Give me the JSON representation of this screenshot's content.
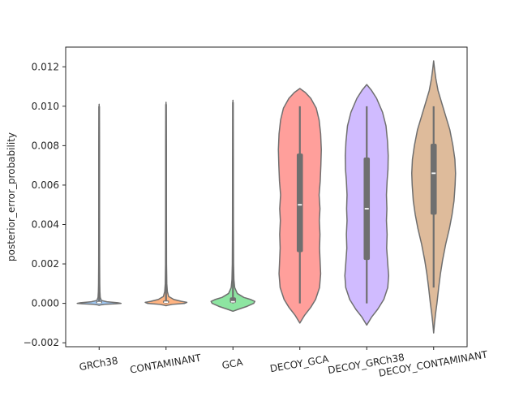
{
  "chart_data": {
    "type": "violin",
    "title": "",
    "xlabel": "",
    "ylabel": "posterior_error_probability",
    "ylim": [
      -0.0022,
      0.013
    ],
    "yticks": [
      -0.002,
      0.0,
      0.002,
      0.004,
      0.006,
      0.008,
      0.01,
      0.012
    ],
    "ytick_labels": [
      "−0.002",
      "0.000",
      "0.002",
      "0.004",
      "0.006",
      "0.008",
      "0.010",
      "0.012"
    ],
    "grid": false,
    "categories": [
      "GRCh38",
      "CONTAMINANT",
      "GCA",
      "DECOY_GCA",
      "DECOY_GRCh38",
      "DECOY_CONTAMINANT"
    ],
    "violins": [
      {
        "category": "GRCh38",
        "color": "#a1c9f4",
        "whisker_low": 0.0,
        "q1": 1e-05,
        "median": 4e-05,
        "q3": 0.0001,
        "whisker_high": 0.01,
        "density": [
          [
            -0.0001,
            0.0
          ],
          [
            -8e-05,
            0.06
          ],
          [
            -5e-05,
            0.25
          ],
          [
            -2e-05,
            0.75
          ],
          [
            0.0,
            1.0
          ],
          [
            3e-05,
            0.85
          ],
          [
            8e-05,
            0.35
          ],
          [
            0.00015,
            0.1
          ],
          [
            0.0003,
            0.05
          ],
          [
            0.0006,
            0.035
          ],
          [
            0.001,
            0.027
          ],
          [
            0.002,
            0.02
          ],
          [
            0.005,
            0.016
          ],
          [
            0.008,
            0.015
          ],
          [
            0.0101,
            0.0
          ]
        ]
      },
      {
        "category": "CONTAMINANT",
        "color": "#ffb482",
        "whisker_low": 0.0,
        "q1": 1e-05,
        "median": 6e-05,
        "q3": 0.00015,
        "whisker_high": 0.0101,
        "density": [
          [
            -0.00012,
            0.0
          ],
          [
            -0.0001,
            0.06
          ],
          [
            -5e-05,
            0.3
          ],
          [
            0.0,
            0.85
          ],
          [
            5e-05,
            0.95
          ],
          [
            0.0001,
            0.7
          ],
          [
            0.0002,
            0.35
          ],
          [
            0.00035,
            0.12
          ],
          [
            0.0006,
            0.06
          ],
          [
            0.001,
            0.035
          ],
          [
            0.002,
            0.022
          ],
          [
            0.005,
            0.017
          ],
          [
            0.008,
            0.015
          ],
          [
            0.0102,
            0.0
          ]
        ]
      },
      {
        "category": "GCA",
        "color": "#8de5a1",
        "whisker_low": 0.0,
        "q1": 2e-05,
        "median": 8e-05,
        "q3": 0.0003,
        "whisker_high": 0.0102,
        "density": [
          [
            -0.0004,
            0.0
          ],
          [
            -0.0003,
            0.25
          ],
          [
            -0.00015,
            0.65
          ],
          [
            0.0,
            0.95
          ],
          [
            0.0001,
            1.0
          ],
          [
            0.0002,
            0.8
          ],
          [
            0.0003,
            0.5
          ],
          [
            0.0005,
            0.2
          ],
          [
            0.0008,
            0.08
          ],
          [
            0.0012,
            0.045
          ],
          [
            0.002,
            0.028
          ],
          [
            0.004,
            0.02
          ],
          [
            0.007,
            0.017
          ],
          [
            0.0103,
            0.0
          ]
        ]
      },
      {
        "category": "DECOY_GCA",
        "color": "#ff9f9b",
        "whisker_low": 0.0,
        "q1": 0.0026,
        "median": 0.005,
        "q3": 0.0076,
        "whisker_high": 0.01,
        "density": [
          [
            -0.001,
            0.0
          ],
          [
            -0.0006,
            0.22
          ],
          [
            -0.0002,
            0.5
          ],
          [
            0.0002,
            0.72
          ],
          [
            0.0008,
            0.9
          ],
          [
            0.0015,
            0.95
          ],
          [
            0.002,
            0.93
          ],
          [
            0.0028,
            0.9
          ],
          [
            0.0035,
            0.92
          ],
          [
            0.0042,
            0.89
          ],
          [
            0.0048,
            0.92
          ],
          [
            0.0055,
            0.88
          ],
          [
            0.0062,
            0.93
          ],
          [
            0.007,
            0.96
          ],
          [
            0.0078,
            0.98
          ],
          [
            0.0086,
            0.95
          ],
          [
            0.0093,
            0.88
          ],
          [
            0.0099,
            0.75
          ],
          [
            0.0104,
            0.5
          ],
          [
            0.0107,
            0.25
          ],
          [
            0.0109,
            0.0
          ]
        ]
      },
      {
        "category": "DECOY_GRCh38",
        "color": "#d0bbff",
        "whisker_low": 0.0,
        "q1": 0.0022,
        "median": 0.0048,
        "q3": 0.0074,
        "whisker_high": 0.01,
        "density": [
          [
            -0.0011,
            0.0
          ],
          [
            -0.0007,
            0.22
          ],
          [
            -0.0003,
            0.5
          ],
          [
            0.0002,
            0.78
          ],
          [
            0.0008,
            0.96
          ],
          [
            0.0014,
            1.0
          ],
          [
            0.002,
            0.96
          ],
          [
            0.0028,
            0.91
          ],
          [
            0.0035,
            0.93
          ],
          [
            0.0042,
            0.9
          ],
          [
            0.0048,
            0.92
          ],
          [
            0.0055,
            0.9
          ],
          [
            0.0062,
            0.93
          ],
          [
            0.0068,
            0.97
          ],
          [
            0.0075,
            0.98
          ],
          [
            0.0082,
            0.95
          ],
          [
            0.009,
            0.88
          ],
          [
            0.0097,
            0.72
          ],
          [
            0.0104,
            0.45
          ],
          [
            0.0108,
            0.22
          ],
          [
            0.0111,
            0.0
          ]
        ]
      },
      {
        "category": "DECOY_CONTAMINANT",
        "color": "#debb9b",
        "whisker_low": 0.0008,
        "q1": 0.0045,
        "median": 0.0066,
        "q3": 0.0081,
        "whisker_high": 0.01,
        "density": [
          [
            -0.0015,
            0.0
          ],
          [
            -0.001,
            0.04
          ],
          [
            -0.0005,
            0.09
          ],
          [
            0.0,
            0.15
          ],
          [
            0.0008,
            0.23
          ],
          [
            0.0015,
            0.31
          ],
          [
            0.0022,
            0.41
          ],
          [
            0.003,
            0.55
          ],
          [
            0.0038,
            0.72
          ],
          [
            0.0045,
            0.84
          ],
          [
            0.0052,
            0.93
          ],
          [
            0.006,
            0.98
          ],
          [
            0.0066,
            1.0
          ],
          [
            0.0073,
            0.97
          ],
          [
            0.008,
            0.88
          ],
          [
            0.0088,
            0.74
          ],
          [
            0.0095,
            0.55
          ],
          [
            0.0102,
            0.36
          ],
          [
            0.0108,
            0.2
          ],
          [
            0.0114,
            0.1
          ],
          [
            0.0119,
            0.04
          ],
          [
            0.0123,
            0.0
          ]
        ]
      }
    ]
  }
}
